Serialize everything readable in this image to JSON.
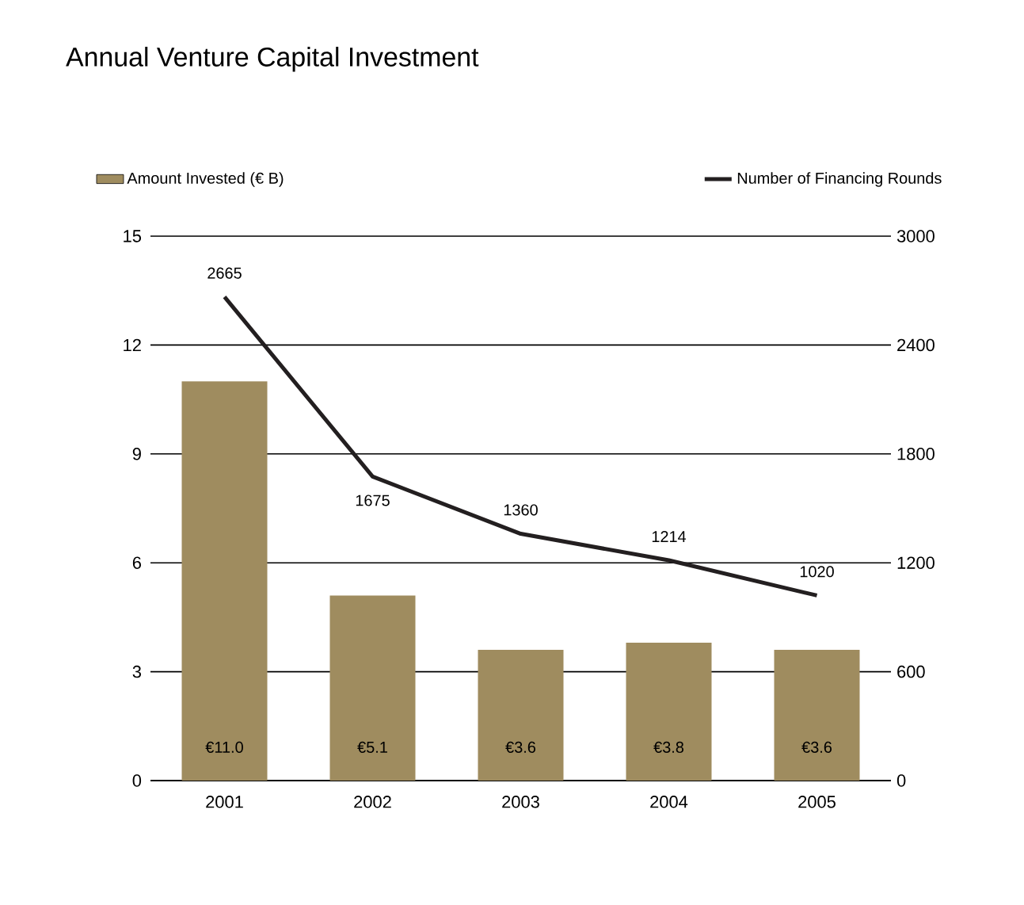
{
  "chart_data": {
    "type": "bar",
    "title": "Annual Venture Capital Investment",
    "categories": [
      "2001",
      "2002",
      "2003",
      "2004",
      "2005"
    ],
    "series": [
      {
        "name": "Amount Invested (€ B)",
        "color": "#9f8c5f",
        "values": [
          11.0,
          5.1,
          3.6,
          3.8,
          3.6
        ],
        "value_labels": [
          "€11.0",
          "€5.1",
          "€3.6",
          "€3.8",
          "€3.6"
        ]
      },
      {
        "name": "Number of Financing Rounds",
        "type": "line",
        "axis": "y2",
        "color": "#231f20",
        "values": [
          2665,
          1675,
          1360,
          1214,
          1020
        ],
        "value_labels": [
          "2665",
          "1675",
          "1360",
          "1214",
          "1020"
        ]
      }
    ],
    "ylim": [
      0,
      15
    ],
    "yticks": [
      0,
      3,
      6,
      9,
      12,
      15
    ],
    "y2lim": [
      0,
      3000
    ],
    "y2ticks": [
      0,
      600,
      1200,
      1800,
      2400,
      3000
    ],
    "grid": "y",
    "legend": "top"
  }
}
